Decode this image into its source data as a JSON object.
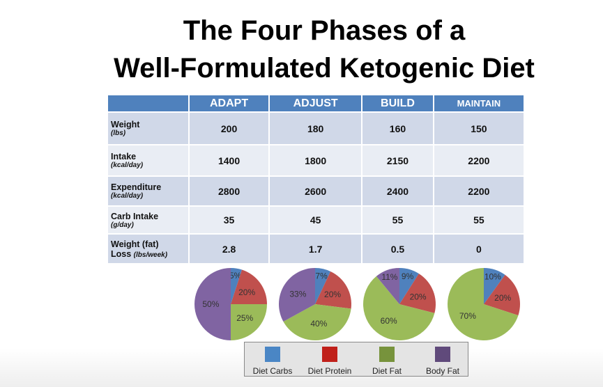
{
  "title_line1": "The Four Phases of a",
  "title_line2": "Well-Formulated Ketogenic Diet",
  "table": {
    "headers": [
      "ADAPT",
      "ADJUST",
      "BUILD",
      "MAINTAIN"
    ],
    "rows": [
      {
        "label": "Weight",
        "unit": "(lbs)",
        "values": [
          "200",
          "180",
          "160",
          "150"
        ]
      },
      {
        "label": "Intake",
        "unit": "(kcal/day)",
        "values": [
          "1400",
          "1800",
          "2150",
          "2200"
        ]
      },
      {
        "label": "Expenditure",
        "unit": "(kcal/day)",
        "values": [
          "2800",
          "2600",
          "2400",
          "2200"
        ]
      },
      {
        "label": "Carb Intake",
        "unit": "(g/day)",
        "values": [
          "35",
          "45",
          "55",
          "55"
        ]
      },
      {
        "label": "Weight (fat)",
        "label2": "Loss",
        "unit": "(lbs/week)",
        "values": [
          "2.8",
          "1.7",
          "0.5",
          "0"
        ]
      }
    ]
  },
  "chart_data": {
    "type": "pie",
    "categories": [
      "Diet Carbs",
      "Diet Protein",
      "Diet Fat",
      "Body Fat"
    ],
    "colors": [
      "#4f81bd",
      "#c0504d",
      "#9bbb59",
      "#8064a2"
    ],
    "legend_colors": [
      "#4a86c5",
      "#c0201a",
      "#77933c",
      "#604a7b"
    ],
    "legend_position": "bottom",
    "pies": [
      {
        "phase": "ADAPT",
        "values": [
          5,
          20,
          25,
          50
        ]
      },
      {
        "phase": "ADJUST",
        "values": [
          7,
          20,
          40,
          33
        ]
      },
      {
        "phase": "BUILD",
        "values": [
          9,
          20,
          60,
          11
        ]
      },
      {
        "phase": "MAINTAIN",
        "values": [
          10,
          20,
          70,
          0
        ]
      }
    ]
  }
}
